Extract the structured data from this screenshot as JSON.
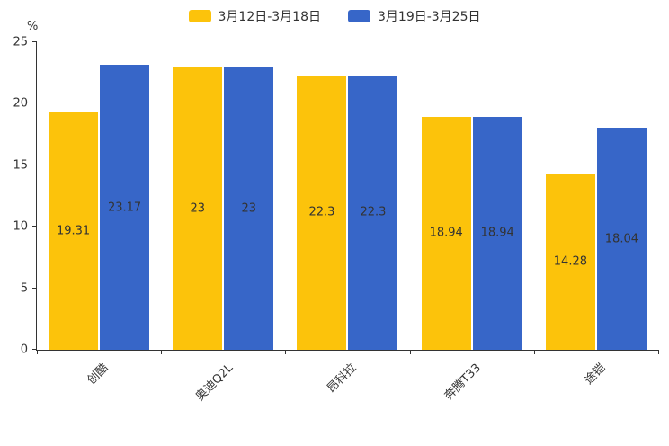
{
  "chart_data": {
    "type": "bar",
    "title": "",
    "unit": "%",
    "categories": [
      "创酷",
      "奥迪Q2L",
      "昂科拉",
      "奔腾T33",
      "途铠"
    ],
    "series": [
      {
        "name": "3月12日-3月18日",
        "color": "#FCC30B",
        "values": [
          19.31,
          23,
          22.3,
          18.94,
          14.28
        ]
      },
      {
        "name": "3月19日-3月25日",
        "color": "#3766C8",
        "values": [
          23.17,
          23,
          22.3,
          18.94,
          18.04
        ]
      }
    ],
    "ylim": [
      0,
      25
    ],
    "yticks": [
      0,
      5,
      10,
      15,
      20,
      25
    ],
    "legend_position": "top",
    "grid": false,
    "value_label_color": "#333333",
    "axis_color": "#333333"
  }
}
